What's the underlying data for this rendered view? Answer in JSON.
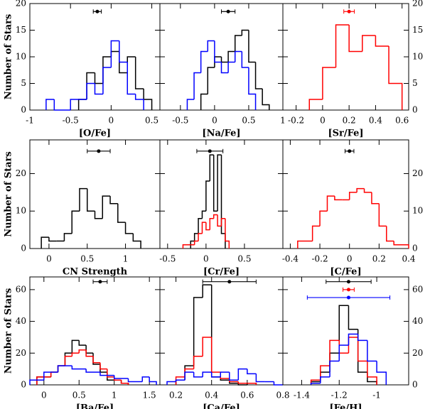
{
  "chart_data": [
    {
      "type": "histogram",
      "xlabel": "[O/Fe]",
      "ylabel": "Number of Stars",
      "ytick_side": "left",
      "xlim": [
        -1,
        0.6
      ],
      "xticks": [
        -1,
        -0.5,
        0,
        0.5
      ],
      "ylim": [
        0,
        20
      ],
      "yticks": [
        0,
        5,
        10,
        15,
        20
      ],
      "series": [
        {
          "color": "#000000",
          "bins": [
            -0.4,
            -0.3,
            -0.2,
            -0.1,
            0,
            0.1,
            0.2,
            0.3,
            0.4,
            0.5
          ],
          "counts": [
            2,
            7,
            5,
            10,
            11,
            7,
            10,
            4,
            2
          ]
        },
        {
          "color": "#0000ff",
          "bins": [
            -0.8,
            -0.7,
            -0.6,
            -0.5,
            -0.4,
            -0.3,
            -0.2,
            -0.1,
            0,
            0.1,
            0.2,
            0.3,
            0.4
          ],
          "counts": [
            2,
            0,
            0,
            2,
            2,
            5,
            3,
            8,
            13,
            9,
            3,
            2
          ]
        }
      ],
      "error_bars": [
        {
          "color": "#000000",
          "x": -0.17,
          "xerr": 0.05,
          "y": 18.5
        }
      ]
    },
    {
      "type": "histogram",
      "xlabel": "[Na/Fe]",
      "ytick_side": "none",
      "xlim": [
        -0.8,
        1.0
      ],
      "xticks": [
        -0.5,
        0,
        0.5,
        1
      ],
      "ylim": [
        0,
        20
      ],
      "yticks": [
        0,
        5,
        10,
        15,
        20
      ],
      "series": [
        {
          "color": "#000000",
          "bins": [
            -0.2,
            -0.1,
            0,
            0.1,
            0.2,
            0.3,
            0.4,
            0.5,
            0.6,
            0.7,
            0.8
          ],
          "counts": [
            3,
            8,
            10,
            9,
            11,
            14,
            15,
            9,
            4,
            1
          ]
        },
        {
          "color": "#0000ff",
          "bins": [
            -0.4,
            -0.3,
            -0.2,
            -0.1,
            0,
            0.1,
            0.2,
            0.3,
            0.4,
            0.5,
            0.6
          ],
          "counts": [
            2,
            7,
            11,
            13,
            9,
            7,
            9,
            11,
            8,
            3
          ]
        }
      ],
      "error_bars": [
        {
          "color": "#000000",
          "x": 0.2,
          "xerr": 0.1,
          "y": 18.5
        }
      ]
    },
    {
      "type": "histogram",
      "xlabel": "[Sr/Fe]",
      "ytick_side": "right",
      "xlim": [
        -0.3,
        0.65
      ],
      "xticks": [
        -0.2,
        0,
        0.2,
        0.4,
        0.6
      ],
      "ylim": [
        0,
        20
      ],
      "yticks": [
        0,
        5,
        10,
        15,
        20
      ],
      "series": [
        {
          "color": "#ff0000",
          "bins": [
            -0.1,
            0,
            0.1,
            0.2,
            0.3,
            0.4,
            0.5,
            0.6
          ],
          "counts": [
            2,
            8,
            16,
            11,
            14,
            12,
            5
          ]
        }
      ],
      "error_bars": [
        {
          "color": "#ff0000",
          "x": 0.2,
          "xerr": 0.04,
          "y": 18.5
        }
      ]
    },
    {
      "type": "histogram",
      "xlabel": "CN Strength",
      "ylabel": "Number of Stars",
      "ytick_side": "left",
      "xlim": [
        -0.25,
        1.45
      ],
      "xticks": [
        0,
        0.5,
        1
      ],
      "ylim": [
        0,
        29
      ],
      "yticks": [
        0,
        10,
        20
      ],
      "series": [
        {
          "color": "#000000",
          "bins": [
            -0.1,
            0,
            0.1,
            0.2,
            0.3,
            0.4,
            0.5,
            0.6,
            0.7,
            0.8,
            0.9,
            1.0,
            1.1,
            1.2
          ],
          "counts": [
            3,
            2,
            2,
            4,
            10,
            16,
            10,
            8,
            14,
            12,
            7,
            4,
            2
          ]
        }
      ],
      "error_bars": [
        {
          "color": "#000000",
          "x": 0.65,
          "xerr": 0.15,
          "y": 26
        }
      ]
    },
    {
      "type": "histogram",
      "xlabel": "[Cr/Fe]",
      "ytick_side": "none",
      "xlim": [
        -0.6,
        1.0
      ],
      "xticks": [
        -0.5,
        0,
        0.5
      ],
      "ylim": [
        0,
        29
      ],
      "yticks": [
        0,
        10,
        20
      ],
      "series": [
        {
          "color": "#000000",
          "bins": [
            -0.2,
            -0.15,
            -0.1,
            -0.05,
            0,
            0.05,
            0.1,
            0.15,
            0.2,
            0.25
          ],
          "counts": [
            2,
            4,
            8,
            10,
            18,
            25,
            10,
            25,
            4
          ]
        },
        {
          "color": "#ff0000",
          "bins": [
            -0.3,
            -0.2,
            -0.15,
            -0.1,
            -0.05,
            0,
            0.05,
            0.1,
            0.15,
            0.2,
            0.25,
            0.3
          ],
          "counts": [
            1,
            1,
            2,
            4,
            7,
            5,
            8,
            9,
            6,
            8,
            2
          ]
        }
      ],
      "error_bars": [
        {
          "color": "#000000",
          "x": 0.05,
          "xerr": 0.17,
          "y": 26
        }
      ]
    },
    {
      "type": "histogram",
      "xlabel": "[C/Fe]",
      "ytick_side": "right",
      "xlim": [
        -0.45,
        0.4
      ],
      "xticks": [
        -0.4,
        -0.2,
        0,
        0.2,
        0.4
      ],
      "ylim": [
        0,
        29
      ],
      "yticks": [
        0,
        10,
        20
      ],
      "series": [
        {
          "color": "#ff0000",
          "bins": [
            -0.35,
            -0.25,
            -0.2,
            -0.15,
            -0.1,
            -0.05,
            0,
            0.05,
            0.1,
            0.15,
            0.2,
            0.25,
            0.3,
            0.4
          ],
          "counts": [
            2,
            6,
            10,
            14,
            13,
            13,
            15,
            16,
            15,
            12,
            6,
            2,
            1
          ]
        }
      ],
      "error_bars": [
        {
          "color": "#000000",
          "x": 0,
          "xerr": 0.03,
          "y": 26
        }
      ]
    },
    {
      "type": "histogram",
      "xlabel": "[Ba/Fe]",
      "ylabel": "Number of Stars",
      "ytick_side": "left",
      "xlim": [
        -0.2,
        1.65
      ],
      "xticks": [
        0,
        0.5,
        1,
        1.5
      ],
      "ylim": [
        0,
        68
      ],
      "yticks": [
        0,
        20,
        40,
        60
      ],
      "series": [
        {
          "color": "#000000",
          "bins": [
            -0.1,
            0.1,
            0.2,
            0.3,
            0.4,
            0.5,
            0.6,
            0.7,
            0.8,
            0.9,
            1.0,
            1.1,
            1.2
          ],
          "counts": [
            5,
            8,
            12,
            20,
            28,
            25,
            20,
            13,
            8,
            3,
            3,
            1
          ]
        },
        {
          "color": "#ff0000",
          "bins": [
            -0.1,
            0.1,
            0.2,
            0.3,
            0.4,
            0.5,
            0.6,
            0.7,
            0.8,
            0.9,
            1.0,
            1.1,
            1.2
          ],
          "counts": [
            5,
            8,
            12,
            18,
            20,
            22,
            18,
            14,
            10,
            5,
            3,
            1
          ]
        },
        {
          "color": "#0000ff",
          "bins": [
            -0.2,
            0,
            0.2,
            0.4,
            0.6,
            0.8,
            1.0,
            1.2,
            1.4,
            1.5,
            1.6
          ],
          "counts": [
            3,
            8,
            12,
            10,
            8,
            6,
            4,
            2,
            5,
            2
          ]
        }
      ],
      "error_bars": [
        {
          "color": "#000000",
          "x": 0.8,
          "xerr": 0.1,
          "y": 65
        }
      ]
    },
    {
      "type": "histogram",
      "xlabel": "[Ca/Fe]",
      "ytick_side": "none",
      "xlim": [
        0.11,
        0.8
      ],
      "xticks": [
        0.2,
        0.4,
        0.6,
        0.8
      ],
      "ylim": [
        0,
        68
      ],
      "yticks": [
        0,
        20,
        40,
        60
      ],
      "series": [
        {
          "color": "#000000",
          "bins": [
            0.2,
            0.25,
            0.3,
            0.35,
            0.4,
            0.45,
            0.5,
            0.55,
            0.6,
            0.65
          ],
          "counts": [
            3,
            12,
            55,
            63,
            5,
            3,
            1,
            0,
            1
          ]
        },
        {
          "color": "#ff0000",
          "bins": [
            0.2,
            0.25,
            0.3,
            0.35,
            0.4,
            0.45,
            0.5,
            0.55,
            0.6,
            0.65
          ],
          "counts": [
            5,
            10,
            18,
            30,
            8,
            4,
            2,
            1,
            1
          ]
        },
        {
          "color": "#0000ff",
          "bins": [
            0.15,
            0.2,
            0.25,
            0.3,
            0.35,
            0.4,
            0.45,
            0.5,
            0.55,
            0.6,
            0.65,
            0.7,
            0.75,
            0.8
          ],
          "counts": [
            2,
            3,
            8,
            5,
            8,
            5,
            8,
            3,
            10,
            7,
            2,
            2,
            0
          ]
        }
      ],
      "error_bars": [
        {
          "color": "#000000",
          "x": 0.5,
          "xerr": 0.15,
          "y": 65
        }
      ]
    },
    {
      "type": "histogram",
      "xlabel": "[Fe/H]",
      "ytick_side": "right",
      "xlim": [
        -1.5,
        -0.83
      ],
      "xticks": [
        -1.4,
        -1.2,
        -1
      ],
      "ylim": [
        0,
        68
      ],
      "yticks": [
        0,
        20,
        40,
        60
      ],
      "series": [
        {
          "color": "#000000",
          "bins": [
            -1.35,
            -1.3,
            -1.25,
            -1.2,
            -1.15,
            -1.1,
            -1.05,
            -1.0
          ],
          "counts": [
            2,
            8,
            20,
            50,
            35,
            8,
            2
          ]
        },
        {
          "color": "#ff0000",
          "bins": [
            -1.35,
            -1.3,
            -1.25,
            -1.2,
            -1.15,
            -1.1,
            -1.05,
            -1.0
          ],
          "counts": [
            3,
            12,
            28,
            20,
            30,
            15,
            5
          ]
        },
        {
          "color": "#0000ff",
          "bins": [
            -1.35,
            -1.3,
            -1.25,
            -1.2,
            -1.15,
            -1.1,
            -1.05,
            -1.0,
            -0.95
          ],
          "counts": [
            1,
            5,
            15,
            25,
            32,
            28,
            15,
            8
          ]
        }
      ],
      "error_bars": [
        {
          "color": "#000000",
          "x": -1.15,
          "xerr": 0.12,
          "y": 65
        },
        {
          "color": "#ff0000",
          "x": -1.15,
          "xerr": 0.03,
          "y": 60
        },
        {
          "color": "#0000ff",
          "x": -1.15,
          "xerr": 0.22,
          "y": 55
        }
      ]
    }
  ]
}
